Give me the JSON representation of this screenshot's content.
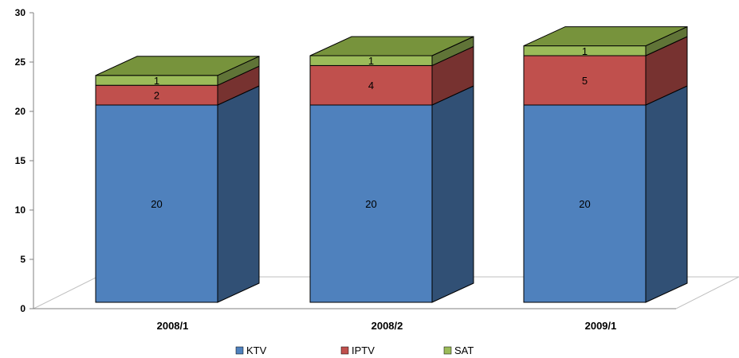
{
  "chart_data": {
    "type": "bar",
    "stacked": true,
    "style": "3d",
    "categories": [
      "2008/1",
      "2008/2",
      "2009/1"
    ],
    "series": [
      {
        "name": "KTV",
        "values": [
          20,
          20,
          20
        ],
        "color": "#4F81BD"
      },
      {
        "name": "IPTV",
        "values": [
          2,
          4,
          5
        ],
        "color": "#C0504D"
      },
      {
        "name": "SAT",
        "values": [
          1,
          1,
          1
        ],
        "color": "#9BBB59"
      }
    ],
    "ylim": [
      0,
      30
    ],
    "yticks": [
      "0",
      "5",
      "10",
      "15",
      "20",
      "25",
      "30"
    ],
    "legend": "bottom",
    "grid": false
  }
}
